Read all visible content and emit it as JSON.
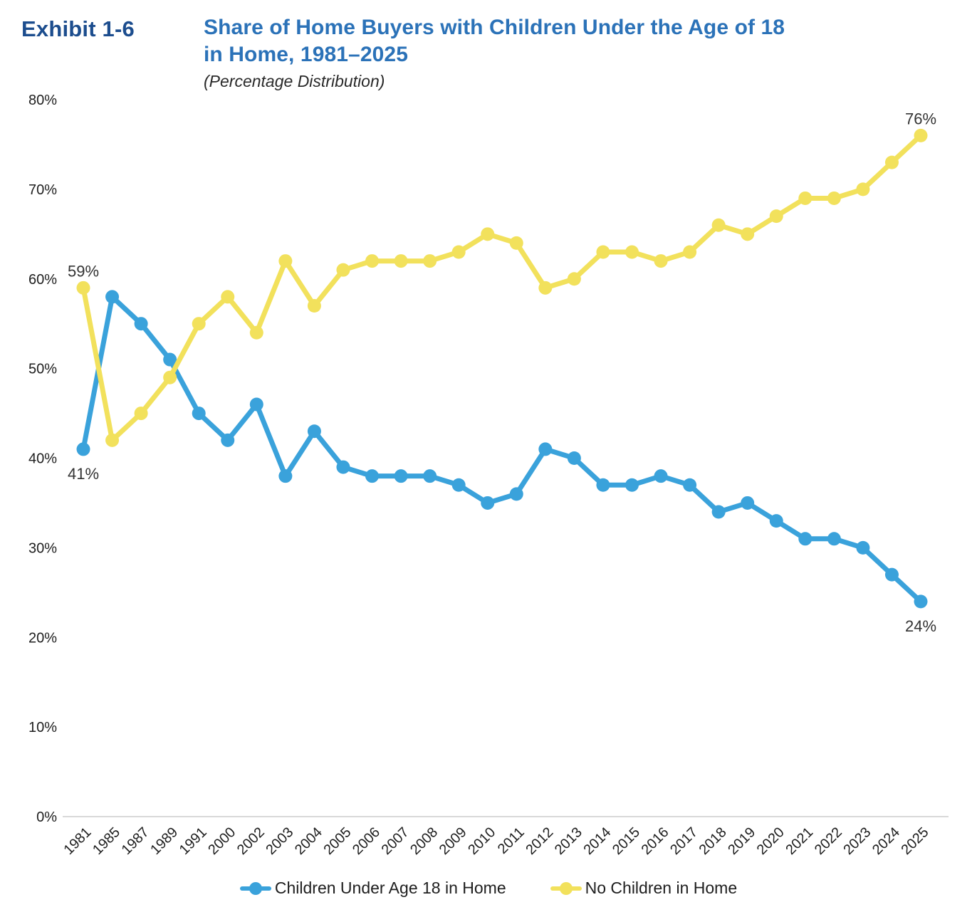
{
  "header": {
    "exhibit_label": "Exhibit 1-6",
    "title_line1": "Share of Home Buyers with Children Under the Age of 18",
    "title_line2": "in Home, 1981–2025",
    "subtitle": "(Percentage Distribution)"
  },
  "colors": {
    "exhibit_label_text": "#1c4d8e",
    "title_text": "#2b72b8",
    "children_line": "#3aa2db",
    "no_children_line": "#f2e15c",
    "axis_line": "#d9d9d9",
    "tick_text": "#1e1e1e",
    "point_label_text": "#333333"
  },
  "chart_data": {
    "type": "line",
    "title": "Share of Home Buyers with Children Under the Age of 18 in Home, 1981–2025",
    "subtitle": "(Percentage Distribution)",
    "categories": [
      "1981",
      "1985",
      "1987",
      "1989",
      "1991",
      "2000",
      "2002",
      "2003",
      "2004",
      "2005",
      "2006",
      "2007",
      "2008",
      "2009",
      "2010",
      "2011",
      "2012",
      "2013",
      "2014",
      "2015",
      "2016",
      "2017",
      "2018",
      "2019",
      "2020",
      "2021",
      "2022",
      "2023",
      "2024",
      "2025"
    ],
    "series": [
      {
        "name": "Children Under Age 18 in Home",
        "color_key": "children_line",
        "values": [
          41,
          58,
          55,
          51,
          45,
          42,
          46,
          38,
          43,
          39,
          38,
          38,
          38,
          37,
          35,
          36,
          41,
          40,
          37,
          37,
          38,
          37,
          34,
          35,
          33,
          31,
          31,
          30,
          27,
          24
        ]
      },
      {
        "name": "No Children in Home",
        "color_key": "no_children_line",
        "values": [
          59,
          42,
          45,
          49,
          55,
          58,
          54,
          62,
          57,
          61,
          62,
          62,
          62,
          63,
          65,
          64,
          59,
          60,
          63,
          63,
          62,
          63,
          66,
          65,
          67,
          69,
          69,
          70,
          73,
          76
        ]
      }
    ],
    "ylim": [
      0,
      80
    ],
    "ytick_step": 10,
    "ytick_suffix": "%",
    "grid": false,
    "legend_position": "bottom",
    "point_labels": [
      {
        "series": 1,
        "index": 0,
        "text": "59%",
        "position": "above"
      },
      {
        "series": 0,
        "index": 0,
        "text": "41%",
        "position": "below"
      },
      {
        "series": 1,
        "index": 29,
        "text": "76%",
        "position": "above"
      },
      {
        "series": 0,
        "index": 29,
        "text": "24%",
        "position": "below"
      }
    ]
  }
}
